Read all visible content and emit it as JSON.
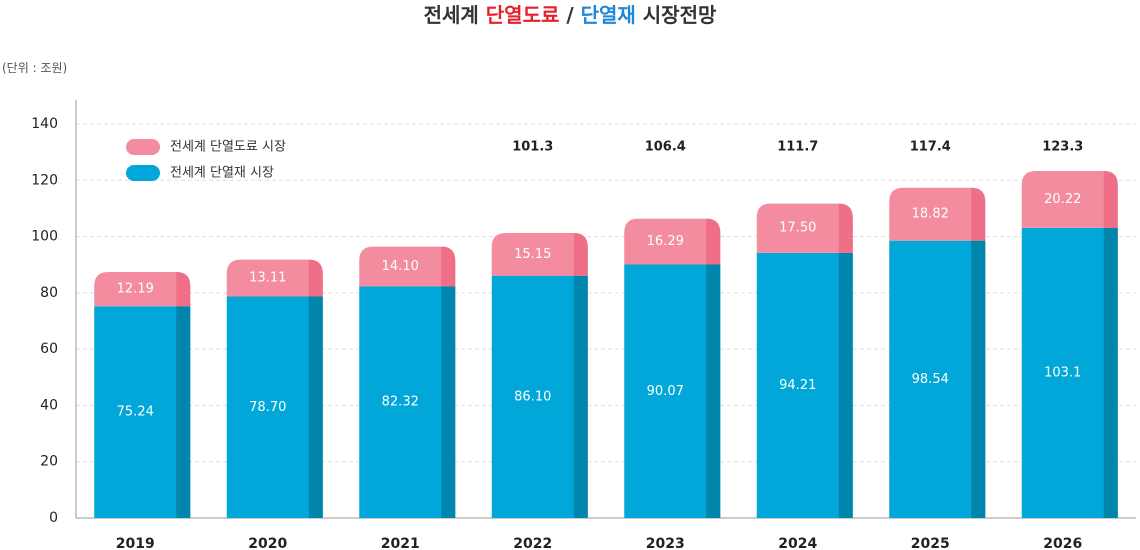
{
  "title": {
    "part1": "전세계 ",
    "part2": "단열도료",
    "part3": " / ",
    "part4": "단열재",
    "part5": " 시장전망"
  },
  "unit_label": "(단위 : 조원)",
  "colors": {
    "title_red": "#e8202a",
    "title_blue": "#1e88d6",
    "coating": "#f48ca0",
    "coating_side": "#ef6f88",
    "insulation": "#00a7d8",
    "insulation_side": "#0086ad",
    "grid": "#dddddd",
    "axis": "#999999"
  },
  "chart_data": {
    "type": "bar",
    "stacked": true,
    "categories": [
      "2019",
      "2020",
      "2021",
      "2022",
      "2023",
      "2024",
      "2025",
      "2026"
    ],
    "series": [
      {
        "name": "전세계 단열재 시장",
        "values": [
          75.24,
          78.7,
          82.32,
          86.1,
          90.07,
          94.21,
          98.54,
          103.1
        ],
        "labels": [
          "75.24",
          "78.70",
          "82.32",
          "86.10",
          "90.07",
          "94.21",
          "98.54",
          "103.1"
        ]
      },
      {
        "name": "전세계 단열도료 시장",
        "values": [
          12.19,
          13.11,
          14.1,
          15.15,
          16.29,
          17.5,
          18.82,
          20.22
        ],
        "labels": [
          "12.19",
          "13.11",
          "14.10",
          "15.15",
          "16.29",
          "17.50",
          "18.82",
          "20.22"
        ]
      }
    ],
    "totals": [
      "",
      "",
      "",
      "101.3",
      "106.4",
      "111.7",
      "117.4",
      "123.3"
    ],
    "ylim": [
      0,
      140
    ],
    "yticks": [
      "0",
      "20",
      "40",
      "60",
      "80",
      "100",
      "120",
      "140"
    ],
    "grid": true,
    "legend": "top-left"
  }
}
